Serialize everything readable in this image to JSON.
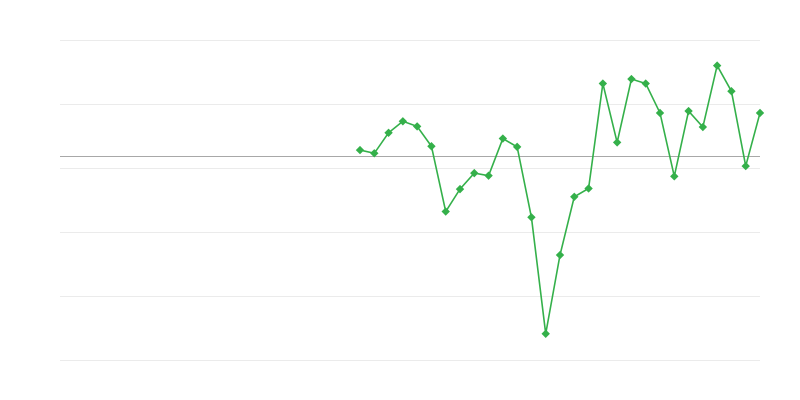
{
  "chart_data": {
    "type": "line",
    "title": "",
    "xlabel": "",
    "ylabel": "",
    "xlim": [
      0,
      49
    ],
    "ylim": [
      -31.9,
      18.1
    ],
    "gridlines": [
      18.1,
      8.1,
      -1.9,
      -11.9,
      -21.9,
      -31.9
    ],
    "baseline": 0,
    "grid": true,
    "legend": "none",
    "colors": {
      "series": "#34b04a",
      "grid": "#ebebeb",
      "baseline": "#a8a8a8"
    },
    "marker": "diamond",
    "series": [
      {
        "x": [
          21,
          22,
          23,
          24,
          25,
          26,
          27,
          28,
          29,
          30,
          31,
          32,
          33,
          34,
          35,
          36,
          37,
          38,
          39,
          40,
          41,
          42,
          43,
          44,
          45,
          46,
          47,
          48,
          49
        ],
        "values": [
          0.9,
          0.4,
          3.6,
          5.4,
          4.6,
          1.5,
          -8.7,
          -5.2,
          -2.7,
          -3.1,
          2.7,
          1.4,
          -9.6,
          -27.8,
          -15.5,
          -6.4,
          -5.1,
          11.3,
          2.1,
          12.0,
          11.3,
          6.7,
          -3.2,
          7.0,
          4.5,
          14.1,
          10.1,
          -1.6,
          6.7
        ]
      }
    ]
  }
}
